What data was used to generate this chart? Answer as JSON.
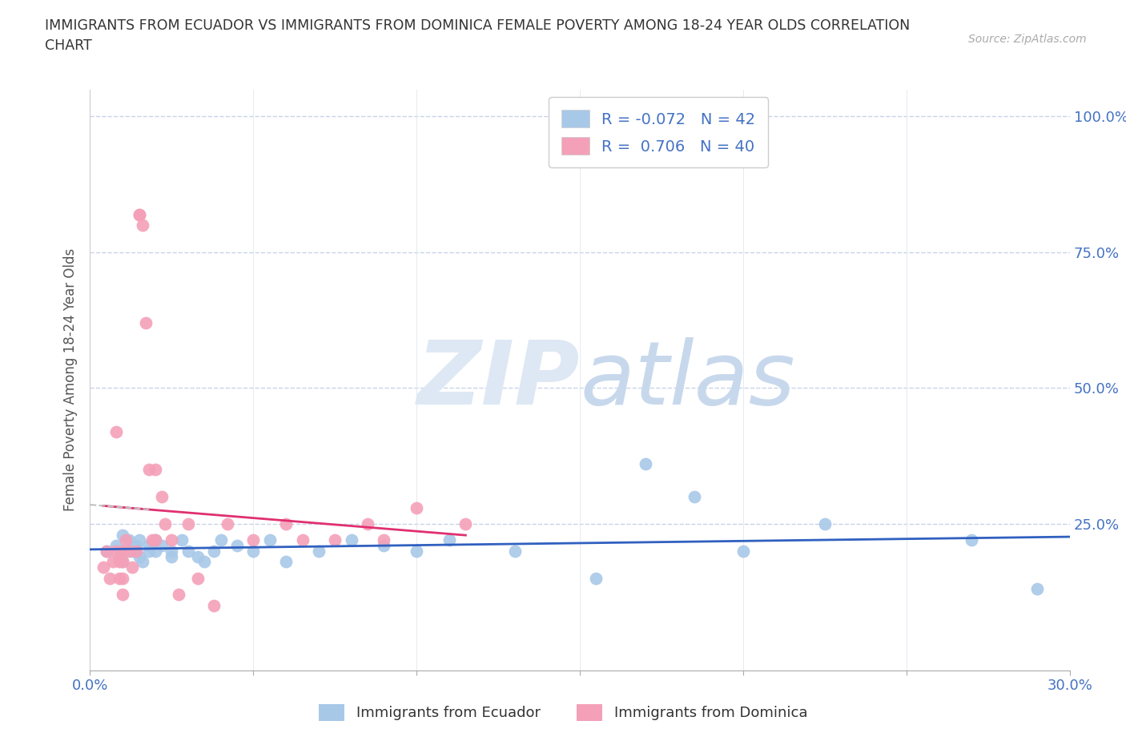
{
  "title": "IMMIGRANTS FROM ECUADOR VS IMMIGRANTS FROM DOMINICA FEMALE POVERTY AMONG 18-24 YEAR OLDS CORRELATION\nCHART",
  "source": "Source: ZipAtlas.com",
  "ylabel": "Female Poverty Among 18-24 Year Olds",
  "xlim": [
    0.0,
    0.3
  ],
  "ylim": [
    -0.02,
    1.05
  ],
  "R_ecuador": -0.072,
  "N_ecuador": 42,
  "R_dominica": 0.706,
  "N_dominica": 40,
  "color_ecuador": "#a8c8e8",
  "color_dominica": "#f4a0b8",
  "line_color_ecuador": "#3060c0",
  "line_color_dominica": "#e03070",
  "line_color_dominica_dashed": "#c0c0c0",
  "grid_color": "#c8d4e8",
  "watermark_color": "#dde8f4",
  "ecuador_x": [
    0.005,
    0.008,
    0.009,
    0.01,
    0.01,
    0.01,
    0.012,
    0.013,
    0.014,
    0.015,
    0.015,
    0.016,
    0.018,
    0.018,
    0.02,
    0.02,
    0.022,
    0.025,
    0.025,
    0.028,
    0.03,
    0.033,
    0.035,
    0.038,
    0.04,
    0.045,
    0.05,
    0.055,
    0.06,
    0.07,
    0.08,
    0.09,
    0.1,
    0.11,
    0.13,
    0.155,
    0.17,
    0.185,
    0.2,
    0.225,
    0.27,
    0.29
  ],
  "ecuador_y": [
    0.2,
    0.21,
    0.19,
    0.23,
    0.2,
    0.18,
    0.22,
    0.2,
    0.21,
    0.19,
    0.22,
    0.18,
    0.2,
    0.21,
    0.2,
    0.22,
    0.21,
    0.19,
    0.2,
    0.22,
    0.2,
    0.19,
    0.18,
    0.2,
    0.22,
    0.21,
    0.2,
    0.22,
    0.18,
    0.2,
    0.22,
    0.21,
    0.2,
    0.22,
    0.2,
    0.15,
    0.36,
    0.3,
    0.2,
    0.25,
    0.22,
    0.13
  ],
  "dominica_x": [
    0.004,
    0.005,
    0.006,
    0.007,
    0.008,
    0.008,
    0.009,
    0.009,
    0.01,
    0.01,
    0.01,
    0.01,
    0.011,
    0.012,
    0.013,
    0.014,
    0.015,
    0.015,
    0.016,
    0.017,
    0.018,
    0.019,
    0.02,
    0.02,
    0.022,
    0.023,
    0.025,
    0.027,
    0.03,
    0.033,
    0.038,
    0.042,
    0.05,
    0.06,
    0.065,
    0.075,
    0.085,
    0.09,
    0.1,
    0.115
  ],
  "dominica_y": [
    0.17,
    0.2,
    0.15,
    0.18,
    0.42,
    0.2,
    0.18,
    0.15,
    0.2,
    0.18,
    0.15,
    0.12,
    0.22,
    0.2,
    0.17,
    0.2,
    0.82,
    0.82,
    0.8,
    0.62,
    0.35,
    0.22,
    0.35,
    0.22,
    0.3,
    0.25,
    0.22,
    0.12,
    0.25,
    0.15,
    0.1,
    0.25,
    0.22,
    0.25,
    0.22,
    0.22,
    0.25,
    0.22,
    0.28,
    0.25
  ],
  "ecuador_line_x": [
    0.004,
    0.29
  ],
  "dominica_line_x_start": 0.0,
  "dominica_line_x_end": 0.13
}
